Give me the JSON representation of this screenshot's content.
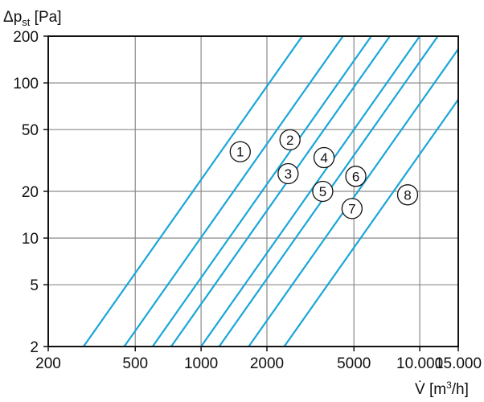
{
  "chart_data": {
    "type": "line",
    "title": "",
    "xlabel": "V̇ [m³/h]",
    "ylabel": "Δpst [Pa]",
    "ylabel_parts": {
      "main": "Δp",
      "sub": "st",
      "unit": " [Pa]"
    },
    "xlabel_parts": {
      "main": "V̇",
      "unit_pre": " [m",
      "sup": "3",
      "unit_post": "/h]"
    },
    "x_scale": "log",
    "y_scale": "log",
    "xlim": [
      200,
      15000
    ],
    "ylim": [
      2,
      200
    ],
    "x_ticks": [
      {
        "value": 200,
        "label": "200"
      },
      {
        "value": 500,
        "label": "500"
      },
      {
        "value": 1000,
        "label": "1000"
      },
      {
        "value": 2000,
        "label": "2000"
      },
      {
        "value": 5000,
        "label": "5000"
      },
      {
        "value": 10000,
        "label": "10.000"
      },
      {
        "value": 15000,
        "label": "15.000"
      }
    ],
    "y_ticks": [
      {
        "value": 2,
        "label": "2"
      },
      {
        "value": 5,
        "label": "5"
      },
      {
        "value": 10,
        "label": "10"
      },
      {
        "value": 20,
        "label": "20"
      },
      {
        "value": 50,
        "label": "50"
      },
      {
        "value": 100,
        "label": "100"
      },
      {
        "value": 200,
        "label": "200"
      }
    ],
    "grid": true,
    "line_color": "#1aa6d8",
    "series": [
      {
        "label": "1",
        "points": [
          [
            290,
            2
          ],
          [
            2900,
            200
          ]
        ],
        "label_at": [
          1510,
          36
        ]
      },
      {
        "label": "2",
        "points": [
          [
            445,
            2
          ],
          [
            4450,
            200
          ]
        ],
        "label_at": [
          2550,
          43
        ]
      },
      {
        "label": "3",
        "points": [
          [
            600,
            2
          ],
          [
            6000,
            200
          ]
        ],
        "label_at": [
          2500,
          26
        ]
      },
      {
        "label": "4",
        "points": [
          [
            730,
            2
          ],
          [
            7300,
            200
          ]
        ],
        "label_at": [
          3650,
          33
        ]
      },
      {
        "label": "5",
        "points": [
          [
            1000,
            2
          ],
          [
            10000,
            200
          ]
        ],
        "label_at": [
          3600,
          20
        ]
      },
      {
        "label": "6",
        "points": [
          [
            1210,
            2
          ],
          [
            12100,
            200
          ]
        ],
        "label_at": [
          5100,
          25
        ]
      },
      {
        "label": "7",
        "points": [
          [
            1650,
            2
          ],
          [
            16500,
            200
          ]
        ],
        "label_at": [
          4900,
          15.5
        ]
      },
      {
        "label": "8",
        "points": [
          [
            2400,
            2
          ],
          [
            24000,
            200
          ]
        ],
        "label_at": [
          8800,
          19
        ]
      }
    ]
  }
}
